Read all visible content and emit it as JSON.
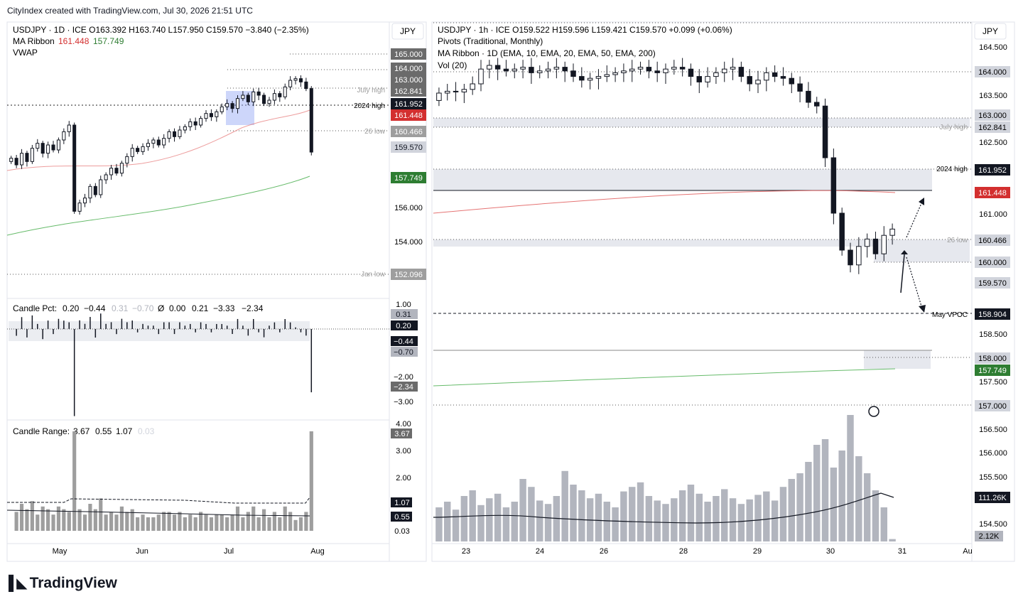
{
  "header": {
    "text": "CityIndex created with TradingView.com, Jul 30, 2026 21:51 UTC"
  },
  "footer": {
    "brand": "TradingView",
    "logo_icon": "tradingview-logo-icon"
  },
  "colors": {
    "up": "#131722",
    "down": "#131722",
    "ma_red": "#e57373",
    "ma_green": "#66bb6a",
    "price_dark": "#131722",
    "price_red": "#d32f2f",
    "price_green": "#2e7d32",
    "gray_label": "#9e9e9e",
    "zone": "#e6e8ee",
    "volume": "#b2b5be"
  },
  "left_chart": {
    "legend": {
      "line1": "USDJPY · 1D · ICE  O163.392  H163.740  L157.950  C159.570  −3.840 (−2.35%)",
      "ma_label": "MA Ribbon",
      "ma_val1": "161.448",
      "ma_val2": "157.749",
      "vwap": "VWAP"
    },
    "currency": "JPY",
    "price_axis": [
      "165.000",
      "164.000",
      "163.000",
      "162.841",
      "161.952",
      "161.448",
      "160.466",
      "159.570",
      "157.749",
      "156.000",
      "154.000",
      "152.096"
    ],
    "level_labels": [
      "July high",
      "2024 high",
      "26 low",
      "Jan low"
    ],
    "x_axis": [
      "May",
      "Jun",
      "Jul",
      "Aug"
    ]
  },
  "candle_pct": {
    "legend_label": "Candle Pct:",
    "legend_vals": [
      "0.20",
      "−0.44",
      "0.31",
      "−0.70",
      "Ø",
      "0.00",
      "0.21",
      "−3.33",
      "−2.34"
    ],
    "axis": [
      "1.00",
      "0.31",
      "0.20",
      "−0.44",
      "−0.70",
      "−2.00",
      "−2.34",
      "−3.00"
    ]
  },
  "candle_range": {
    "legend_label": "Candle Range:",
    "legend_vals": [
      "3.67",
      "0.55",
      "1.07",
      "0.03"
    ],
    "axis": [
      "4.00",
      "3.67",
      "3.00",
      "2.00",
      "1.07",
      "0.55",
      "0.03"
    ]
  },
  "right_chart": {
    "legend": {
      "line1": "USDJPY · 1h · ICE  O159.522  H159.596  L159.421  C159.570  +0.099 (+0.06%)",
      "line2": "Pivots (Traditional, Monthly)",
      "line3": "MA Ribbon · 1D (EMA, 10, EMA, 20, EMA, 50, EMA, 200)",
      "line4": "Vol (20)"
    },
    "currency": "JPY",
    "price_axis": [
      "164.500",
      "164.000",
      "163.500",
      "163.000",
      "162.841",
      "162.500",
      "161.952",
      "161.448",
      "161.000",
      "160.466",
      "160.000",
      "159.570",
      "158.904",
      "158.500",
      "158.000",
      "157.749",
      "157.500",
      "157.000",
      "156.500",
      "156.000",
      "155.500",
      "111.26K",
      "154.500",
      "2.12K"
    ],
    "level_labels": [
      "July high",
      "2024 high",
      "26 low",
      "May VPOC"
    ],
    "x_axis": [
      "23",
      "24",
      "26",
      "28",
      "29",
      "30",
      "31",
      "Au"
    ]
  },
  "chart_data": [
    {
      "type": "candlestick",
      "title": "USDJPY · 1D · ICE",
      "ylim": [
        151.0,
        166.0
      ],
      "x_ticks": [
        "May",
        "Jun",
        "Jul",
        "Aug"
      ],
      "last_ohlc": {
        "open": 163.392,
        "high": 163.74,
        "low": 157.95,
        "close": 159.57
      },
      "series": [
        {
          "name": "USDJPY daily close",
          "values": [
            159.2,
            158.8,
            159.5,
            159.0,
            159.8,
            160.1,
            159.5,
            160.0,
            159.7,
            160.3,
            160.8,
            161.2,
            156.0,
            156.5,
            156.8,
            157.5,
            157.0,
            157.9,
            158.2,
            158.6,
            158.3,
            158.9,
            159.3,
            159.8,
            159.6,
            159.9,
            160.1,
            160.3,
            160.0,
            160.4,
            160.8,
            160.5,
            160.9,
            161.1,
            161.4,
            161.2,
            161.6,
            161.9,
            161.7,
            162.0,
            162.3,
            162.5,
            162.2,
            162.8,
            163.0,
            162.6,
            163.2,
            163.0,
            162.5,
            162.7,
            163.1,
            162.9,
            163.5,
            163.9,
            164.0,
            163.8,
            163.4,
            159.57
          ]
        }
      ]
    },
    {
      "type": "candlestick",
      "title": "USDJPY · 1h · ICE",
      "ylim": [
        154.0,
        165.0
      ],
      "x_ticks": [
        "23",
        "24",
        "26",
        "28",
        "29",
        "30",
        "31",
        "Au"
      ],
      "last_ohlc": {
        "open": 159.522,
        "high": 159.596,
        "low": 159.421,
        "close": 159.57
      },
      "series": [
        {
          "name": "USDJPY hourly close",
          "values": [
            163.25,
            163.3,
            163.28,
            163.35,
            163.5,
            163.9,
            164.0,
            163.9,
            163.85,
            163.9,
            163.95,
            163.8,
            163.85,
            163.9,
            163.95,
            163.85,
            163.7,
            163.6,
            163.65,
            163.7,
            163.75,
            163.8,
            163.85,
            163.9,
            163.95,
            163.85,
            163.8,
            163.9,
            163.95,
            163.9,
            163.7,
            163.55,
            163.7,
            163.8,
            163.9,
            163.95,
            163.7,
            163.5,
            163.6,
            163.8,
            163.7,
            163.65,
            163.5,
            163.3,
            163.0,
            162.9,
            161.5,
            160.0,
            159.0,
            158.6,
            159.1,
            159.3,
            158.9,
            159.4,
            159.57
          ]
        }
      ]
    },
    {
      "type": "bar",
      "title": "Vol (20)",
      "values_k": [
        30,
        35,
        28,
        40,
        45,
        32,
        38,
        42,
        30,
        35,
        55,
        48,
        36,
        33,
        40,
        62,
        50,
        45,
        38,
        42,
        35,
        30,
        44,
        48,
        52,
        40,
        36,
        33,
        38,
        45,
        50,
        42,
        35,
        40,
        46,
        38,
        33,
        37,
        41,
        44,
        36,
        48,
        55,
        60,
        70,
        85,
        90,
        65,
        80,
        111.26,
        75,
        60,
        45,
        30,
        2.12
      ]
    }
  ]
}
